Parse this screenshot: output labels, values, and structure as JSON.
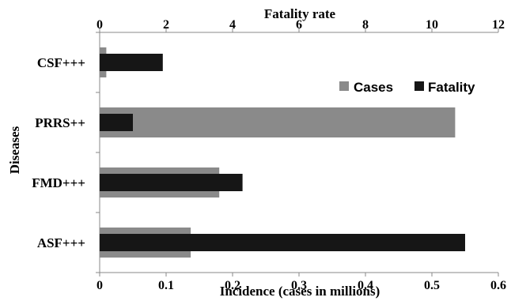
{
  "chart_data": {
    "type": "bar",
    "orientation": "horizontal",
    "categories": [
      "CSF+++",
      "PRRS++",
      "FMD+++",
      "ASF+++"
    ],
    "series": [
      {
        "name": "Cases",
        "axis": "bottom",
        "color": "#8a8a8a",
        "values": [
          0.01,
          0.535,
          0.18,
          0.137
        ]
      },
      {
        "name": "Fatality",
        "axis": "top",
        "color": "#161616",
        "values": [
          1.9,
          1.0,
          4.3,
          11.0
        ]
      }
    ],
    "xlabel_bottom": "Incidence (cases in millions)",
    "xlim_bottom": [
      0,
      0.6
    ],
    "xticks_bottom": [
      "0",
      "0.1",
      "0.2",
      "0.3",
      "0.4",
      "0.5",
      "0.6"
    ],
    "xlabel_top": "Fatality rate",
    "xlim_top": [
      0,
      12
    ],
    "xticks_top": [
      "0",
      "2",
      "4",
      "6",
      "8",
      "10",
      "12"
    ],
    "ylabel": "Diseases",
    "grid": false,
    "legend_position": "upper-right, inside plot"
  }
}
